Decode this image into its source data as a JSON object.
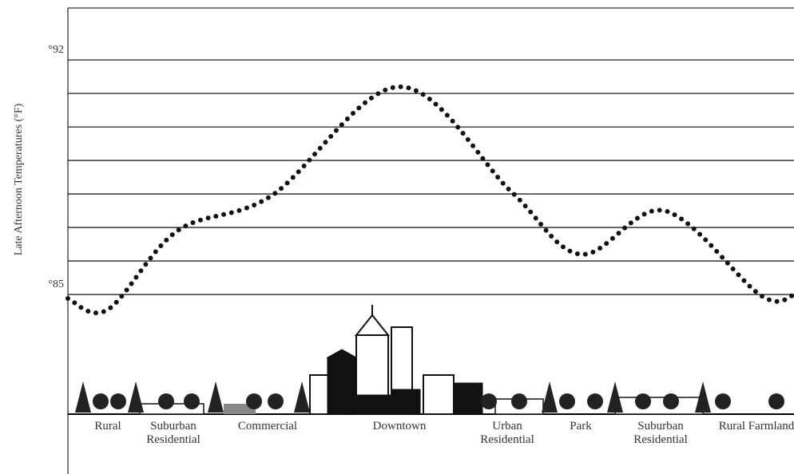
{
  "chart_data": {
    "type": "line",
    "y_label": "Late Afternoon Temperatures (°F)",
    "categories": [
      "Rural",
      "Suburban Residential",
      "Commercial",
      "Downtown",
      "Urban Residential",
      "Park",
      "Suburban Residential",
      "Rural Farmland"
    ],
    "values": [
      84.55,
      86.9,
      87.95,
      91.2,
      88.07,
      86.2,
      87.5,
      84.98
    ],
    "color": "#111111",
    "ylim": [
      81.43,
      93.55
    ],
    "yticks": [
      {
        "value": 85,
        "label": "°85"
      },
      86,
      87,
      88,
      89,
      90,
      91,
      {
        "value": 92,
        "label": "°92"
      }
    ],
    "grid": true
  }
}
